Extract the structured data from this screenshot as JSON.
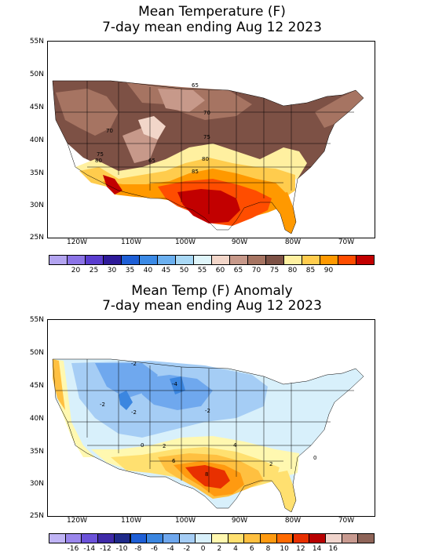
{
  "panels": [
    {
      "title_line1": "Mean Temperature (F)",
      "title_line2": "7-day mean ending Aug 12 2023",
      "lat_labels": [
        "55N",
        "50N",
        "45N",
        "40N",
        "35N",
        "30N",
        "25N"
      ],
      "lon_labels": [
        "120W",
        "110W",
        "100W",
        "90W",
        "80W",
        "70W"
      ],
      "colorbar": {
        "colors": [
          "#b3a4f0",
          "#8b73e6",
          "#5a3dcf",
          "#2e1a99",
          "#1e5fd6",
          "#3b8ae6",
          "#6bb0f0",
          "#a8d8f5",
          "#dff5fa",
          "#f2d6c9",
          "#c7998a",
          "#a67462",
          "#7d5145",
          "#fff0a0",
          "#ffcc4d",
          "#ff9900",
          "#ff4d00",
          "#c20000"
        ],
        "labels": [
          "20",
          "25",
          "30",
          "35",
          "40",
          "45",
          "50",
          "55",
          "60",
          "65",
          "70",
          "75",
          "80",
          "85",
          "90"
        ]
      },
      "contour_labels": [
        "65",
        "70",
        "70",
        "75",
        "75",
        "80",
        "80",
        "85",
        "65"
      ]
    },
    {
      "title_line1": "Mean Temp (F) Anomaly",
      "title_line2": "7-day mean ending Aug 12 2023",
      "lat_labels": [
        "55N",
        "50N",
        "45N",
        "40N",
        "35N",
        "30N",
        "25N"
      ],
      "lon_labels": [
        "120W",
        "110W",
        "100W",
        "90W",
        "80W",
        "70W"
      ],
      "colorbar": {
        "colors": [
          "#c0b4f5",
          "#9a86ec",
          "#6b52d9",
          "#3f2aa8",
          "#1f2a8a",
          "#1e5fd6",
          "#3b86e0",
          "#6fa8ee",
          "#a5cdf5",
          "#d8f0fb",
          "#fff8b0",
          "#ffe070",
          "#ffc040",
          "#ff9a10",
          "#ff6a00",
          "#e83000",
          "#b80000",
          "#f0d4cc",
          "#c89a90",
          "#8e6458"
        ],
        "labels": [
          "-16",
          "-14",
          "-12",
          "-10",
          "-8",
          "-6",
          "-4",
          "-2",
          "0",
          "2",
          "4",
          "6",
          "8",
          "10",
          "12",
          "14",
          "16"
        ]
      },
      "contour_labels": [
        "-2",
        "-4",
        "-2",
        "-2",
        "-2",
        "0",
        "2",
        "4",
        "6",
        "8",
        "0",
        "2"
      ]
    }
  ]
}
